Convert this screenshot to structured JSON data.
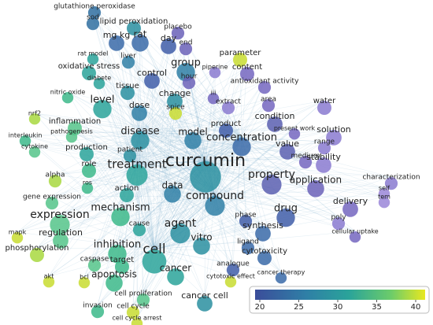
{
  "nodes": [
    {
      "label": "glutathione peroxidase",
      "color": "#2f6fa0"
    },
    {
      "label": "sod",
      "color": "#2f6fa0"
    },
    {
      "label": "lipid peroxidation",
      "color": "#2a8fa0"
    },
    {
      "label": "placebo",
      "color": "#6b62b8"
    },
    {
      "label": "mg kg",
      "color": "#3a6aa8"
    },
    {
      "label": "rat",
      "color": "#3a6aa8"
    },
    {
      "label": "day",
      "color": "#3f5da8"
    },
    {
      "label": "end",
      "color": "#6b62b8"
    },
    {
      "label": "parameter",
      "color": "#c8dc30"
    },
    {
      "label": "group",
      "color": "#2f7fa6"
    },
    {
      "label": "content",
      "color": "#7466c0"
    },
    {
      "label": "rat model",
      "color": "#2aa39a"
    },
    {
      "label": "liver",
      "color": "#2f7fa6"
    },
    {
      "label": "oxidative stress",
      "color": "#2aa39a"
    },
    {
      "label": "piperine",
      "color": "#8a7ad0"
    },
    {
      "label": "control",
      "color": "#3f5da8"
    },
    {
      "label": "hour",
      "color": "#6b62b8"
    },
    {
      "label": "diabete",
      "color": "#2aa39a"
    },
    {
      "label": "antioxidant activity",
      "color": "#7466c0"
    },
    {
      "label": "tissue",
      "color": "#2a8fa0"
    },
    {
      "label": "nitric oxide",
      "color": "#3cb88a"
    },
    {
      "label": "iii",
      "color": "#7466c0"
    },
    {
      "label": "extract",
      "color": "#8a7ad0"
    },
    {
      "label": "area",
      "color": "#7466c0"
    },
    {
      "label": "water",
      "color": "#8a7ad0"
    },
    {
      "label": "level",
      "color": "#2aa39a"
    },
    {
      "label": "dose",
      "color": "#2f7fa6"
    },
    {
      "label": "change",
      "color": "#2a8fa0"
    },
    {
      "label": "spice",
      "color": "#c8dc30"
    },
    {
      "label": "nrf2",
      "color": "#a8d840"
    },
    {
      "label": "inflammation",
      "color": "#55c48a"
    },
    {
      "label": "condition",
      "color": "#5a5fb0"
    },
    {
      "label": "solution",
      "color": "#8a7ad0"
    },
    {
      "label": "pathogenesis",
      "color": "#55c48a"
    },
    {
      "label": "product",
      "color": "#3f5da8"
    },
    {
      "label": "present work",
      "color": "#7466c0"
    },
    {
      "label": "interleukin",
      "color": "#3cb88a"
    },
    {
      "label": "disease",
      "color": "#2a8fa0"
    },
    {
      "label": "model",
      "color": "#2f7fa6"
    },
    {
      "label": "concentration",
      "color": "#3a6aa8"
    },
    {
      "label": "value",
      "color": "#5a5fb0"
    },
    {
      "label": "range",
      "color": "#8a7ad0"
    },
    {
      "label": "cytokine",
      "color": "#55c48a"
    },
    {
      "label": "production",
      "color": "#2aa39a"
    },
    {
      "label": "patient",
      "color": "#2a8fa0"
    },
    {
      "label": "medium",
      "color": "#7466c0"
    },
    {
      "label": "stability",
      "color": "#8a7ad0"
    },
    {
      "label": "curcumin",
      "color": "#2a8fa0"
    },
    {
      "label": "treatment",
      "color": "#2aa39a"
    },
    {
      "label": "property",
      "color": "#5a5fb0"
    },
    {
      "label": "characterization",
      "color": "#8a7ad0"
    },
    {
      "label": "role",
      "color": "#3cb88a"
    },
    {
      "label": "alpha",
      "color": "#a8d840"
    },
    {
      "label": "application",
      "color": "#6b62b8"
    },
    {
      "label": "ros",
      "color": "#3cb88a"
    },
    {
      "label": "self",
      "color": "#9a86d8"
    },
    {
      "label": "data",
      "color": "#2f7fa6"
    },
    {
      "label": "action",
      "color": "#2aa39a"
    },
    {
      "label": "tem",
      "color": "#9a86d8"
    },
    {
      "label": "gene expression",
      "color": "#55c48a"
    },
    {
      "label": "compound",
      "color": "#2f7fa6"
    },
    {
      "label": "delivery",
      "color": "#7466c0"
    },
    {
      "label": "mechanism",
      "color": "#3cb88a"
    },
    {
      "label": "drug",
      "color": "#3f5da8"
    },
    {
      "label": "expression",
      "color": "#55c48a"
    },
    {
      "label": "phase",
      "color": "#3f5da8"
    },
    {
      "label": "poly",
      "color": "#8a7ad0"
    },
    {
      "label": "synthesis",
      "color": "#3a6aa8"
    },
    {
      "label": "cause",
      "color": "#2aa39a"
    },
    {
      "label": "agent",
      "color": "#2a8fa0"
    },
    {
      "label": "mapk",
      "color": "#c8dc30"
    },
    {
      "label": "regulation",
      "color": "#55c48a"
    },
    {
      "label": "cellular uptake",
      "color": "#7466c0"
    },
    {
      "label": "ligand",
      "color": "#3a6aa8"
    },
    {
      "label": "vitro",
      "color": "#2a8fa0"
    },
    {
      "label": "inhibition",
      "color": "#3cb88a"
    },
    {
      "label": "cell",
      "color": "#2aa39a"
    },
    {
      "label": "phosphorylation",
      "color": "#a8d840"
    },
    {
      "label": "cytotoxicity",
      "color": "#3a6aa8"
    },
    {
      "label": "caspase",
      "color": "#55c48a"
    },
    {
      "label": "target",
      "color": "#3cb88a"
    },
    {
      "label": "analogue",
      "color": "#3f5da8"
    },
    {
      "label": "cancer",
      "color": "#2aa39a"
    },
    {
      "label": "apoptosis",
      "color": "#3cb88a"
    },
    {
      "label": "cytotoxic effect",
      "color": "#c8dc30"
    },
    {
      "label": "akt",
      "color": "#c8dc30"
    },
    {
      "label": "bcl",
      "color": "#c8dc30"
    },
    {
      "label": "cancer therapy",
      "color": "#3a6aa8"
    },
    {
      "label": "cancer cell",
      "color": "#2a8fa0"
    },
    {
      "label": "cell proliferation",
      "color": "#55c48a"
    },
    {
      "label": "invasion",
      "color": "#3cb88a"
    },
    {
      "label": "cell cycle",
      "color": "#c8dc30"
    },
    {
      "label": "cell cycle arrest",
      "color": "#c8dc30"
    }
  ],
  "colorbar": {
    "range": [
      20,
      40
    ],
    "ticks": [
      20,
      25,
      30,
      35,
      40
    ]
  }
}
